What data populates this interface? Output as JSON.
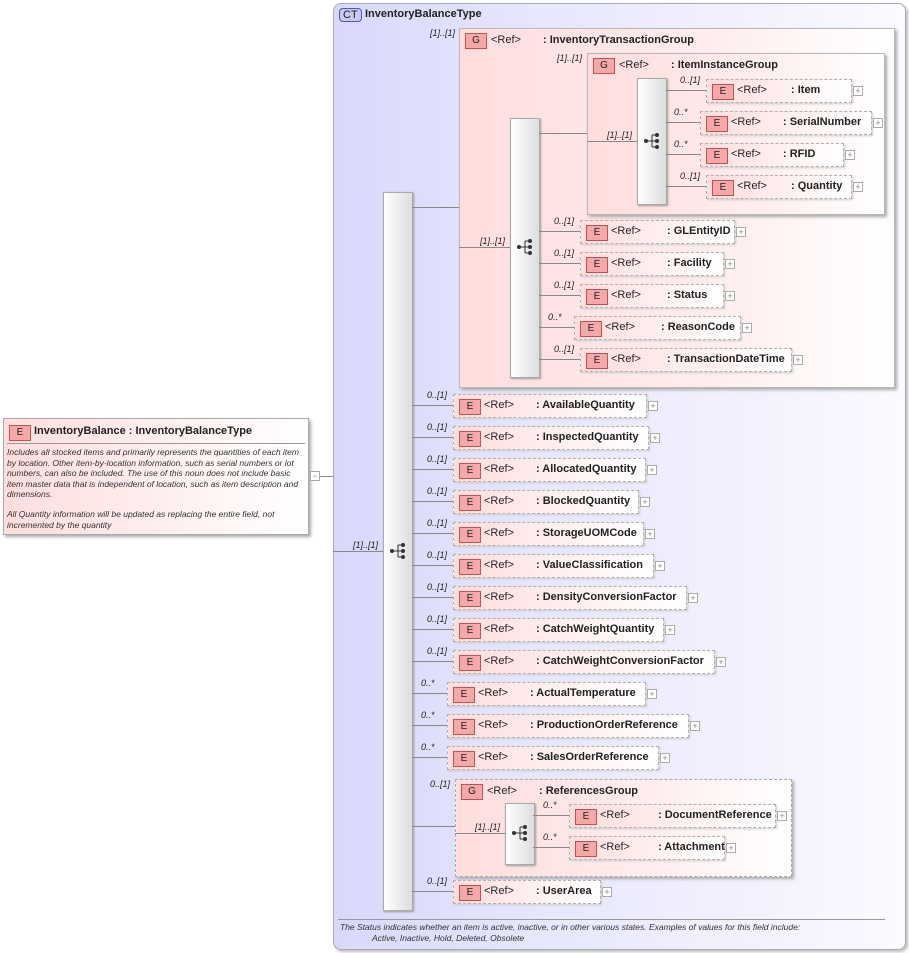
{
  "root": {
    "badge": "E",
    "title": "InventoryBalance : InventoryBalanceType",
    "doc1": "Includes all stocked items and primarily represents the quantities of each item by location.  Other item-by-location information, such as serial numbers or lot numbers, can also be included.  The use of this noun does not include basic item master data that is independent of location, such as item description and dimensions.",
    "doc2": "All Quantity information will be updated as replacing the entire field, not incremented by the quantity",
    "collapse_icon": "minus-box-icon"
  },
  "complex_type": {
    "badge": "CT",
    "name": "InventoryBalanceType",
    "sequence_cardinality": "[1]..[1]",
    "footer_line1": "The Status indicates whether an item is active, inactive, or in other various states.  Examples of values for this field include:",
    "footer_line2": "Active, Inactive, Hold, Deleted, Obsolete"
  },
  "ref_label": "<Ref>",
  "groups": [
    {
      "badge": "G",
      "ref": "<Ref>",
      "name": ": InventoryTransactionGroup",
      "cardinality": "[1]..[1]",
      "seq_cardinality": "[1]..[1]"
    },
    {
      "badge": "G",
      "ref": "<Ref>",
      "name": ": ItemInstanceGroup",
      "cardinality": "[1]..[1]",
      "seq_cardinality": "[1]..[1]"
    },
    {
      "badge": "G",
      "ref": "<Ref>",
      "name": ": ReferencesGroup",
      "cardinality": "0..[1]",
      "seq_cardinality": "[1]..[1]"
    }
  ],
  "elements": [
    {
      "name": ": Item",
      "cardinality": "0..[1]"
    },
    {
      "name": ": SerialNumber",
      "cardinality": "0..*"
    },
    {
      "name": ": RFID",
      "cardinality": "0..*"
    },
    {
      "name": ": Quantity",
      "cardinality": "0..[1]"
    },
    {
      "name": ": GLEntityID",
      "cardinality": "0..[1]"
    },
    {
      "name": ": Facility",
      "cardinality": "0..[1]"
    },
    {
      "name": ": Status",
      "cardinality": "0..[1]"
    },
    {
      "name": ": ReasonCode",
      "cardinality": "0..*"
    },
    {
      "name": ": TransactionDateTime",
      "cardinality": "0..[1]"
    },
    {
      "name": ": AvailableQuantity",
      "cardinality": "0..[1]"
    },
    {
      "name": ": InspectedQuantity",
      "cardinality": "0..[1]"
    },
    {
      "name": ": AllocatedQuantity",
      "cardinality": "0..[1]"
    },
    {
      "name": ": BlockedQuantity",
      "cardinality": "0..[1]"
    },
    {
      "name": ": StorageUOMCode",
      "cardinality": "0..[1]"
    },
    {
      "name": ": ValueClassification",
      "cardinality": "0..[1]"
    },
    {
      "name": ": DensityConversionFactor",
      "cardinality": "0..[1]"
    },
    {
      "name": ": CatchWeightQuantity",
      "cardinality": "0..[1]"
    },
    {
      "name": ": CatchWeightConversionFactor",
      "cardinality": "0..[1]"
    },
    {
      "name": ": ActualTemperature",
      "cardinality": "0..*"
    },
    {
      "name": ": ProductionOrderReference",
      "cardinality": "0..*"
    },
    {
      "name": ": SalesOrderReference",
      "cardinality": "0..*"
    },
    {
      "name": ": DocumentReference",
      "cardinality": "0..*"
    },
    {
      "name": ": Attachment",
      "cardinality": "0..*"
    },
    {
      "name": ": UserArea",
      "cardinality": "0..[1]"
    }
  ],
  "element_badge": "E",
  "expand_icon": "plus-box-icon",
  "sequence_icon": "sequence-compositor-icon"
}
